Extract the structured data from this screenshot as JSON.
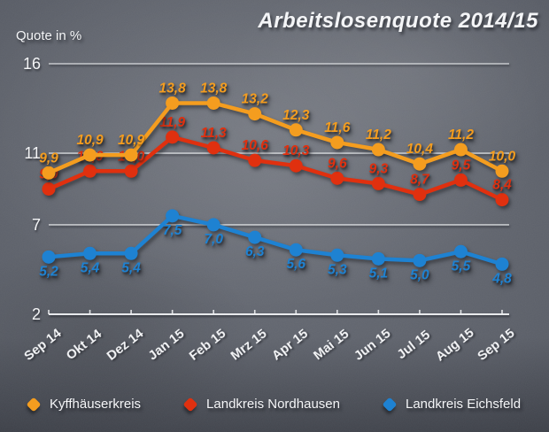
{
  "title": "Arbeitslosenquote 2014/15",
  "y_axis_label": "Quote in %",
  "colors": {
    "orange": "#F49D1F",
    "red": "#E0300F",
    "blue": "#1E82D2",
    "grid": "#dfe1e4",
    "axis": "#f0f1f3",
    "text": "#f4f5f7"
  },
  "chart_data": {
    "type": "line",
    "title": "Arbeitslosenquote 2014/15",
    "ylabel": "Quote in %",
    "xlabel": "",
    "categories": [
      "Sep 14",
      "Okt 14",
      "Dez 14",
      "Jan 15",
      "Feb 15",
      "Mrz 15",
      "Apr 15",
      "Mai 15",
      "Jun 15",
      "Jul 15",
      "Aug 15",
      "Sep 15"
    ],
    "series": [
      {
        "name": "Kyffhäuserkreis",
        "color_key": "orange",
        "label_position": "above",
        "values": [
          9.9,
          10.9,
          10.9,
          13.8,
          13.8,
          13.2,
          12.3,
          11.6,
          11.2,
          10.4,
          11.2,
          10.0
        ]
      },
      {
        "name": "Landkreis Nordhausen",
        "color_key": "red",
        "label_position": "above",
        "values": [
          9.0,
          10.0,
          10.0,
          11.9,
          11.3,
          10.6,
          10.3,
          9.6,
          9.3,
          8.7,
          9.5,
          8.4
        ]
      },
      {
        "name": "Landkreis Eichsfeld",
        "color_key": "blue",
        "label_position": "below",
        "values": [
          5.2,
          5.4,
          5.4,
          7.5,
          7.0,
          6.3,
          5.6,
          5.3,
          5.1,
          5.0,
          5.5,
          4.8
        ]
      }
    ],
    "y_gridlines": [
      16,
      11,
      7,
      2
    ],
    "ylim": [
      2,
      16
    ],
    "decimal_separator": ",",
    "grid": true,
    "legend_position": "bottom"
  }
}
